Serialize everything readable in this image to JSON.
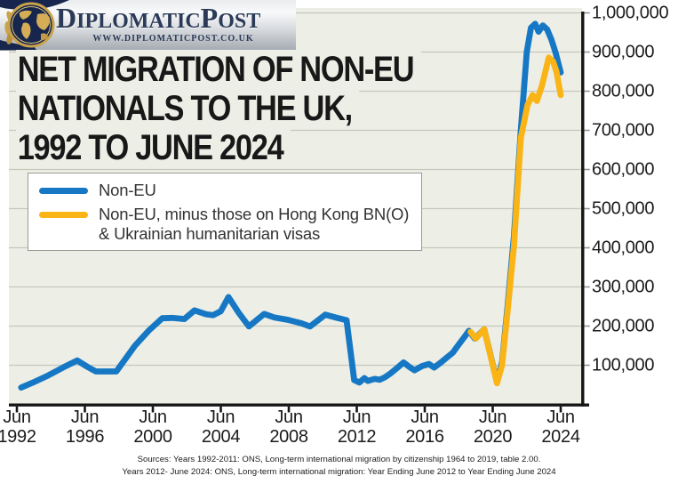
{
  "header": {
    "brand_parts": [
      "D",
      "IPLOMATIC",
      "P",
      "OST"
    ],
    "url": "WWW.DIPLOMATICPOST.CO.UK"
  },
  "title": {
    "line1": "NET MIGRATION OF NON-EU",
    "line2": "NATIONALS TO THE UK,",
    "line3": "1992 TO JUNE 2024"
  },
  "legend": {
    "items": [
      {
        "key": "non-eu",
        "color": "#1678c4",
        "lines": [
          "Non-EU"
        ]
      },
      {
        "key": "non-eu-minus-visas",
        "color": "#fbb416",
        "lines": [
          "Non-EU, minus those on Hong Kong BN(O)",
          "& Ukrainian humanitarian visas"
        ]
      }
    ]
  },
  "sources": {
    "line1": "Sources: Years 1992-2011: ONS, Long-term international migration by citizenship 1964 to 2019, table 2.00.",
    "line2": "Years 2012- June 2024: ONS, Long-term international migration: Year Ending June 2012 to Year Ending June 2024"
  },
  "chart_data": {
    "type": "line",
    "title": "NET MIGRATION OF NON-EU NATIONALS TO THE UK, 1992 TO JUNE 2024",
    "xlabel": "",
    "ylabel": "",
    "grid": "horizontal",
    "legend_position": "upper-left",
    "plot_bg": "#edeee6",
    "gridline_color": "#c7c8bc",
    "axis_color": "#151515",
    "x_axis": {
      "tick_month": "Jun",
      "tick_years": [
        "1992",
        "1996",
        "2000",
        "2004",
        "2008",
        "2012",
        "2016",
        "2020",
        "2024"
      ],
      "range_years": [
        1992.45,
        2024.6
      ]
    },
    "y_axis": {
      "range": [
        0,
        1010000
      ],
      "ticks": [
        {
          "value": 100000,
          "label": "100,000"
        },
        {
          "value": 200000,
          "label": "200,000"
        },
        {
          "value": 300000,
          "label": "300,000"
        },
        {
          "value": 400000,
          "label": "400,000"
        },
        {
          "value": 500000,
          "label": "500,000"
        },
        {
          "value": 600000,
          "label": "600,000"
        },
        {
          "value": 700000,
          "label": "700,000"
        },
        {
          "value": 800000,
          "label": "800,000"
        },
        {
          "value": 900000,
          "label": "900,000"
        },
        {
          "value": 1000000,
          "label": "1,000,000"
        }
      ]
    },
    "series": [
      {
        "key": "non-eu",
        "name": "Non-EU",
        "color": "#1678c4",
        "points": [
          [
            1992.7,
            43000
          ],
          [
            1993.4,
            56000
          ],
          [
            1994.3,
            74000
          ],
          [
            1995.2,
            95000
          ],
          [
            1996.0,
            112000
          ],
          [
            1996.6,
            96000
          ],
          [
            1997.1,
            84000
          ],
          [
            1998.3,
            84000
          ],
          [
            1999.4,
            150000
          ],
          [
            2000.2,
            188000
          ],
          [
            2001.0,
            220000
          ],
          [
            2001.6,
            221000
          ],
          [
            2002.3,
            218000
          ],
          [
            2002.9,
            240000
          ],
          [
            2003.6,
            230000
          ],
          [
            2004.0,
            228000
          ],
          [
            2004.45,
            238000
          ],
          [
            2004.9,
            274000
          ],
          [
            2005.5,
            234000
          ],
          [
            2006.1,
            199000
          ],
          [
            2007.0,
            231000
          ],
          [
            2007.6,
            222000
          ],
          [
            2008.4,
            216000
          ],
          [
            2009.2,
            207000
          ],
          [
            2009.7,
            199000
          ],
          [
            2010.6,
            229000
          ],
          [
            2011.3,
            221000
          ],
          [
            2011.85,
            215000
          ],
          [
            2012.3,
            62000
          ],
          [
            2012.6,
            56000
          ],
          [
            2012.9,
            67000
          ],
          [
            2013.1,
            60000
          ],
          [
            2013.5,
            65000
          ],
          [
            2013.8,
            63000
          ],
          [
            2014.1,
            69000
          ],
          [
            2014.4,
            78000
          ],
          [
            2014.8,
            92000
          ],
          [
            2015.2,
            107000
          ],
          [
            2015.6,
            94000
          ],
          [
            2015.85,
            87000
          ],
          [
            2016.3,
            98000
          ],
          [
            2016.7,
            103000
          ],
          [
            2017.0,
            94000
          ],
          [
            2017.4,
            107000
          ],
          [
            2017.7,
            118000
          ],
          [
            2018.1,
            132000
          ],
          [
            2018.4,
            150000
          ],
          [
            2018.8,
            173000
          ],
          [
            2019.05,
            188000
          ],
          [
            2019.4,
            168000
          ],
          [
            2019.95,
            192000
          ],
          [
            2020.3,
            130000
          ],
          [
            2020.7,
            56000
          ],
          [
            2021.0,
            108000
          ],
          [
            2021.3,
            240000
          ],
          [
            2021.7,
            430000
          ],
          [
            2022.1,
            700000
          ],
          [
            2022.45,
            900000
          ],
          [
            2022.7,
            962000
          ],
          [
            2022.95,
            972000
          ],
          [
            2023.15,
            952000
          ],
          [
            2023.4,
            968000
          ],
          [
            2023.65,
            958000
          ],
          [
            2023.9,
            932000
          ],
          [
            2024.15,
            898000
          ],
          [
            2024.45,
            848000
          ]
        ]
      },
      {
        "key": "non-eu-minus-visas",
        "name": "Non-EU, minus those on Hong Kong BN(O) & Ukrainian humanitarian visas",
        "color": "#fbb416",
        "points": [
          [
            2019.15,
            185000
          ],
          [
            2019.45,
            168000
          ],
          [
            2019.95,
            192000
          ],
          [
            2020.3,
            128000
          ],
          [
            2020.7,
            54000
          ],
          [
            2021.0,
            100000
          ],
          [
            2021.3,
            228000
          ],
          [
            2021.7,
            405000
          ],
          [
            2022.1,
            680000
          ],
          [
            2022.5,
            765000
          ],
          [
            2022.8,
            790000
          ],
          [
            2023.05,
            775000
          ],
          [
            2023.35,
            815000
          ],
          [
            2023.75,
            886000
          ],
          [
            2024.0,
            876000
          ],
          [
            2024.2,
            850000
          ],
          [
            2024.45,
            790000
          ]
        ]
      }
    ]
  }
}
